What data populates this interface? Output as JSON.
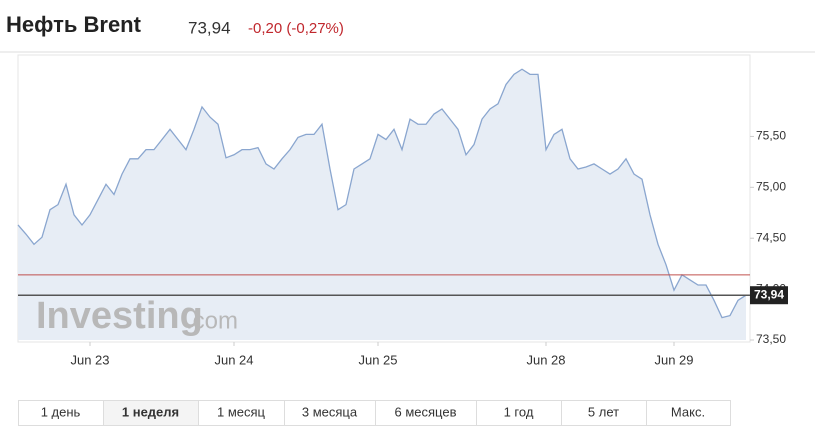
{
  "chart_data": {
    "type": "area",
    "title": "Нефть Brent",
    "price": {
      "value": 73.94,
      "label": "73,94"
    },
    "change": "-0,20 (-0,27%)",
    "watermark": [
      "Investing",
      ".com"
    ],
    "x": [
      0,
      1,
      2,
      3,
      4,
      5,
      6,
      7,
      8,
      9,
      10,
      11,
      12,
      13,
      14,
      15,
      16,
      17,
      18,
      19,
      20,
      21,
      22,
      23,
      24,
      25,
      26,
      27,
      28,
      29,
      30,
      31,
      32,
      33,
      34,
      35,
      36,
      37,
      38,
      39,
      40,
      41,
      42,
      43,
      44,
      45,
      46,
      47,
      48,
      49,
      50,
      51,
      52,
      53,
      54,
      55,
      56,
      57,
      58,
      59,
      60,
      61,
      62,
      63,
      64,
      65,
      66,
      67,
      68,
      69,
      70,
      71,
      72,
      73,
      74,
      75,
      76,
      77,
      78,
      79,
      80,
      81,
      82,
      83,
      84,
      85,
      86,
      87,
      88,
      89,
      90,
      91
    ],
    "series": [
      {
        "color": "#8aa6cf",
        "values": [
          74.63,
          74.54,
          74.44,
          74.51,
          74.78,
          74.83,
          75.03,
          74.73,
          74.63,
          74.73,
          74.88,
          75.03,
          74.93,
          75.13,
          75.28,
          75.28,
          75.37,
          75.37,
          75.47,
          75.57,
          75.47,
          75.37,
          75.57,
          75.79,
          75.69,
          75.62,
          75.29,
          75.32,
          75.37,
          75.37,
          75.39,
          75.23,
          75.18,
          75.28,
          75.37,
          75.49,
          75.52,
          75.52,
          75.62,
          75.18,
          74.78,
          74.83,
          75.18,
          75.23,
          75.28,
          75.52,
          75.47,
          75.57,
          75.37,
          75.67,
          75.62,
          75.62,
          75.72,
          75.77,
          75.67,
          75.57,
          75.32,
          75.42,
          75.67,
          75.77,
          75.82,
          76.01,
          76.11,
          76.16,
          76.11,
          76.11,
          75.37,
          75.52,
          75.57,
          75.28,
          75.18,
          75.2,
          75.23,
          75.18,
          75.13,
          75.18,
          75.28,
          75.13,
          75.08,
          74.73,
          74.44,
          74.24,
          73.99,
          74.14,
          74.09,
          74.04,
          74.04,
          73.89,
          73.72,
          73.74,
          73.89,
          73.94
        ]
      }
    ],
    "previous_close": 74.14,
    "xlim": [
      0,
      91
    ],
    "xticks": [
      {
        "value": 9,
        "label": "Jun 23"
      },
      {
        "value": 27,
        "label": "Jun 24"
      },
      {
        "value": 45,
        "label": "Jun 25"
      },
      {
        "value": 66,
        "label": "Jun 28"
      },
      {
        "value": 82,
        "label": "Jun 29"
      }
    ],
    "ylim": [
      73.5,
      76.3
    ],
    "yticks": [
      {
        "value": 73.5,
        "label": "73,50"
      },
      {
        "value": 74,
        "label": "74,00"
      },
      {
        "value": 74.5,
        "label": "74,50"
      },
      {
        "value": 75,
        "label": "75,00"
      },
      {
        "value": 75.5,
        "label": "75,50"
      }
    ],
    "ranges": [
      "1 день",
      "1 неделя",
      "1 месяц",
      "3 месяца",
      "6 месяцев",
      "1 год",
      "5 лет",
      "Макс."
    ],
    "active_range": 1
  }
}
